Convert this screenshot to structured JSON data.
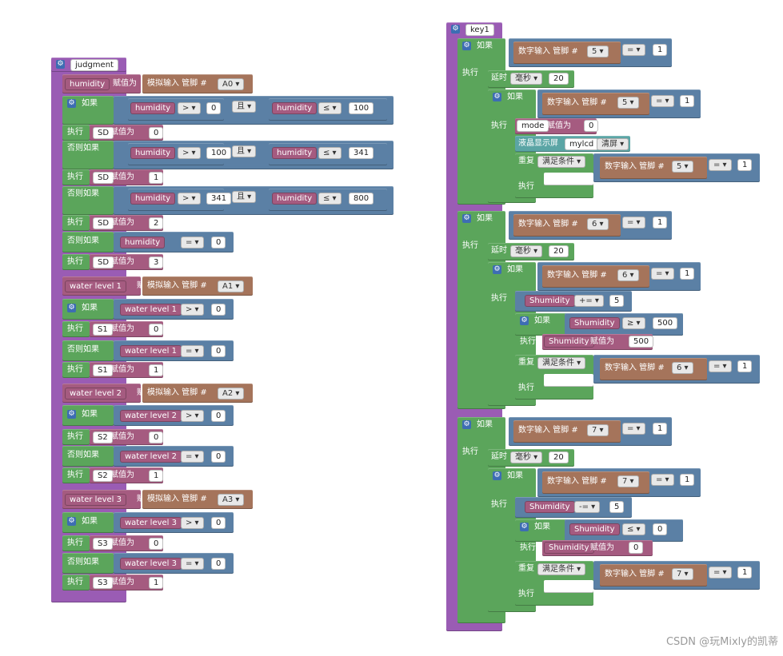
{
  "workspace": {
    "left": {
      "proc": "judgment",
      "rows": [
        {
          "type": "assign",
          "var": "humidity",
          "set": "赋值为",
          "fn": "模拟输入 管脚 #",
          "pin": "A0"
        },
        {
          "type": "if",
          "kw": "如果",
          "a": "humidity",
          "op1": ">",
          "v1": "0",
          "and": "且",
          "b": "humidity",
          "op2": "≤",
          "v2": "100"
        },
        {
          "type": "do",
          "kw": "执行",
          "var": "SD",
          "set": "赋值为",
          "val": "0"
        },
        {
          "type": "elif",
          "kw": "否则如果",
          "a": "humidity",
          "op1": ">",
          "v1": "100",
          "and": "且",
          "b": "humidity",
          "op2": "≤",
          "v2": "341"
        },
        {
          "type": "do",
          "kw": "执行",
          "var": "SD",
          "set": "赋值为",
          "val": "1"
        },
        {
          "type": "elif",
          "kw": "否则如果",
          "a": "humidity",
          "op1": ">",
          "v1": "341",
          "and": "且",
          "b": "humidity",
          "op2": "≤",
          "v2": "800"
        },
        {
          "type": "do",
          "kw": "执行",
          "var": "SD",
          "set": "赋值为",
          "val": "2"
        },
        {
          "type": "elif1",
          "kw": "否则如果",
          "a": "humidity",
          "op1": "=",
          "v1": "0"
        },
        {
          "type": "do",
          "kw": "执行",
          "var": "SD",
          "set": "赋值为",
          "val": "3"
        },
        {
          "type": "assign",
          "var": "water level 1",
          "set": "赋值为",
          "fn": "模拟输入 管脚 #",
          "pin": "A1"
        },
        {
          "type": "if1",
          "kw": "如果",
          "a": "water level 1",
          "op1": ">",
          "v1": "0"
        },
        {
          "type": "do",
          "kw": "执行",
          "var": "S1",
          "set": "赋值为",
          "val": "0"
        },
        {
          "type": "elif1",
          "kw": "否则如果",
          "a": "water level 1",
          "op1": "=",
          "v1": "0"
        },
        {
          "type": "do",
          "kw": "执行",
          "var": "S1",
          "set": "赋值为",
          "val": "1"
        },
        {
          "type": "assign",
          "var": "water level 2",
          "set": "赋值为",
          "fn": "模拟输入 管脚 #",
          "pin": "A2"
        },
        {
          "type": "if1",
          "kw": "如果",
          "a": "water level 2",
          "op1": ">",
          "v1": "0"
        },
        {
          "type": "do",
          "kw": "执行",
          "var": "S2",
          "set": "赋值为",
          "val": "0"
        },
        {
          "type": "elif1",
          "kw": "否则如果",
          "a": "water level 2",
          "op1": "=",
          "v1": "0"
        },
        {
          "type": "do",
          "kw": "执行",
          "var": "S2",
          "set": "赋值为",
          "val": "1"
        },
        {
          "type": "assign",
          "var": "water level 3",
          "set": "赋值为",
          "fn": "模拟输入 管脚 #",
          "pin": "A3"
        },
        {
          "type": "if1",
          "kw": "如果",
          "a": "water level 3",
          "op1": ">",
          "v1": "0"
        },
        {
          "type": "do",
          "kw": "执行",
          "var": "S3",
          "set": "赋值为",
          "val": "0"
        },
        {
          "type": "elif1",
          "kw": "否则如果",
          "a": "water level 3",
          "op1": "=",
          "v1": "0"
        },
        {
          "type": "do",
          "kw": "执行",
          "var": "S3",
          "set": "赋值为",
          "val": "1"
        }
      ]
    },
    "right": {
      "proc": "key1",
      "labels": {
        "if": "如果",
        "do": "执行",
        "delay": "延时",
        "ms": "毫秒",
        "digital": "数字输入 管脚 #",
        "assign": "赋值为",
        "lcd": "液晶显示屏",
        "lcdname": "mylcd",
        "clear": "清屏",
        "repeat": "重复",
        "until": "满足条件",
        "eq": "=",
        "one": "1"
      },
      "groups": [
        {
          "pin": "5",
          "delay": "20",
          "mode_var": "mode",
          "mode_val": "0"
        },
        {
          "pin": "6",
          "delay": "20",
          "svar": "Shumidity",
          "sop": "+=",
          "sval": "5",
          "cmp": "≥",
          "climit": "500",
          "set_val": "500"
        },
        {
          "pin": "7",
          "delay": "20",
          "svar": "Shumidity",
          "sop": "-=",
          "sval": "5",
          "cmp": "≤",
          "climit": "0",
          "set_val": "0"
        }
      ]
    },
    "watermark": "CSDN @玩Mixly的凯蒂"
  }
}
